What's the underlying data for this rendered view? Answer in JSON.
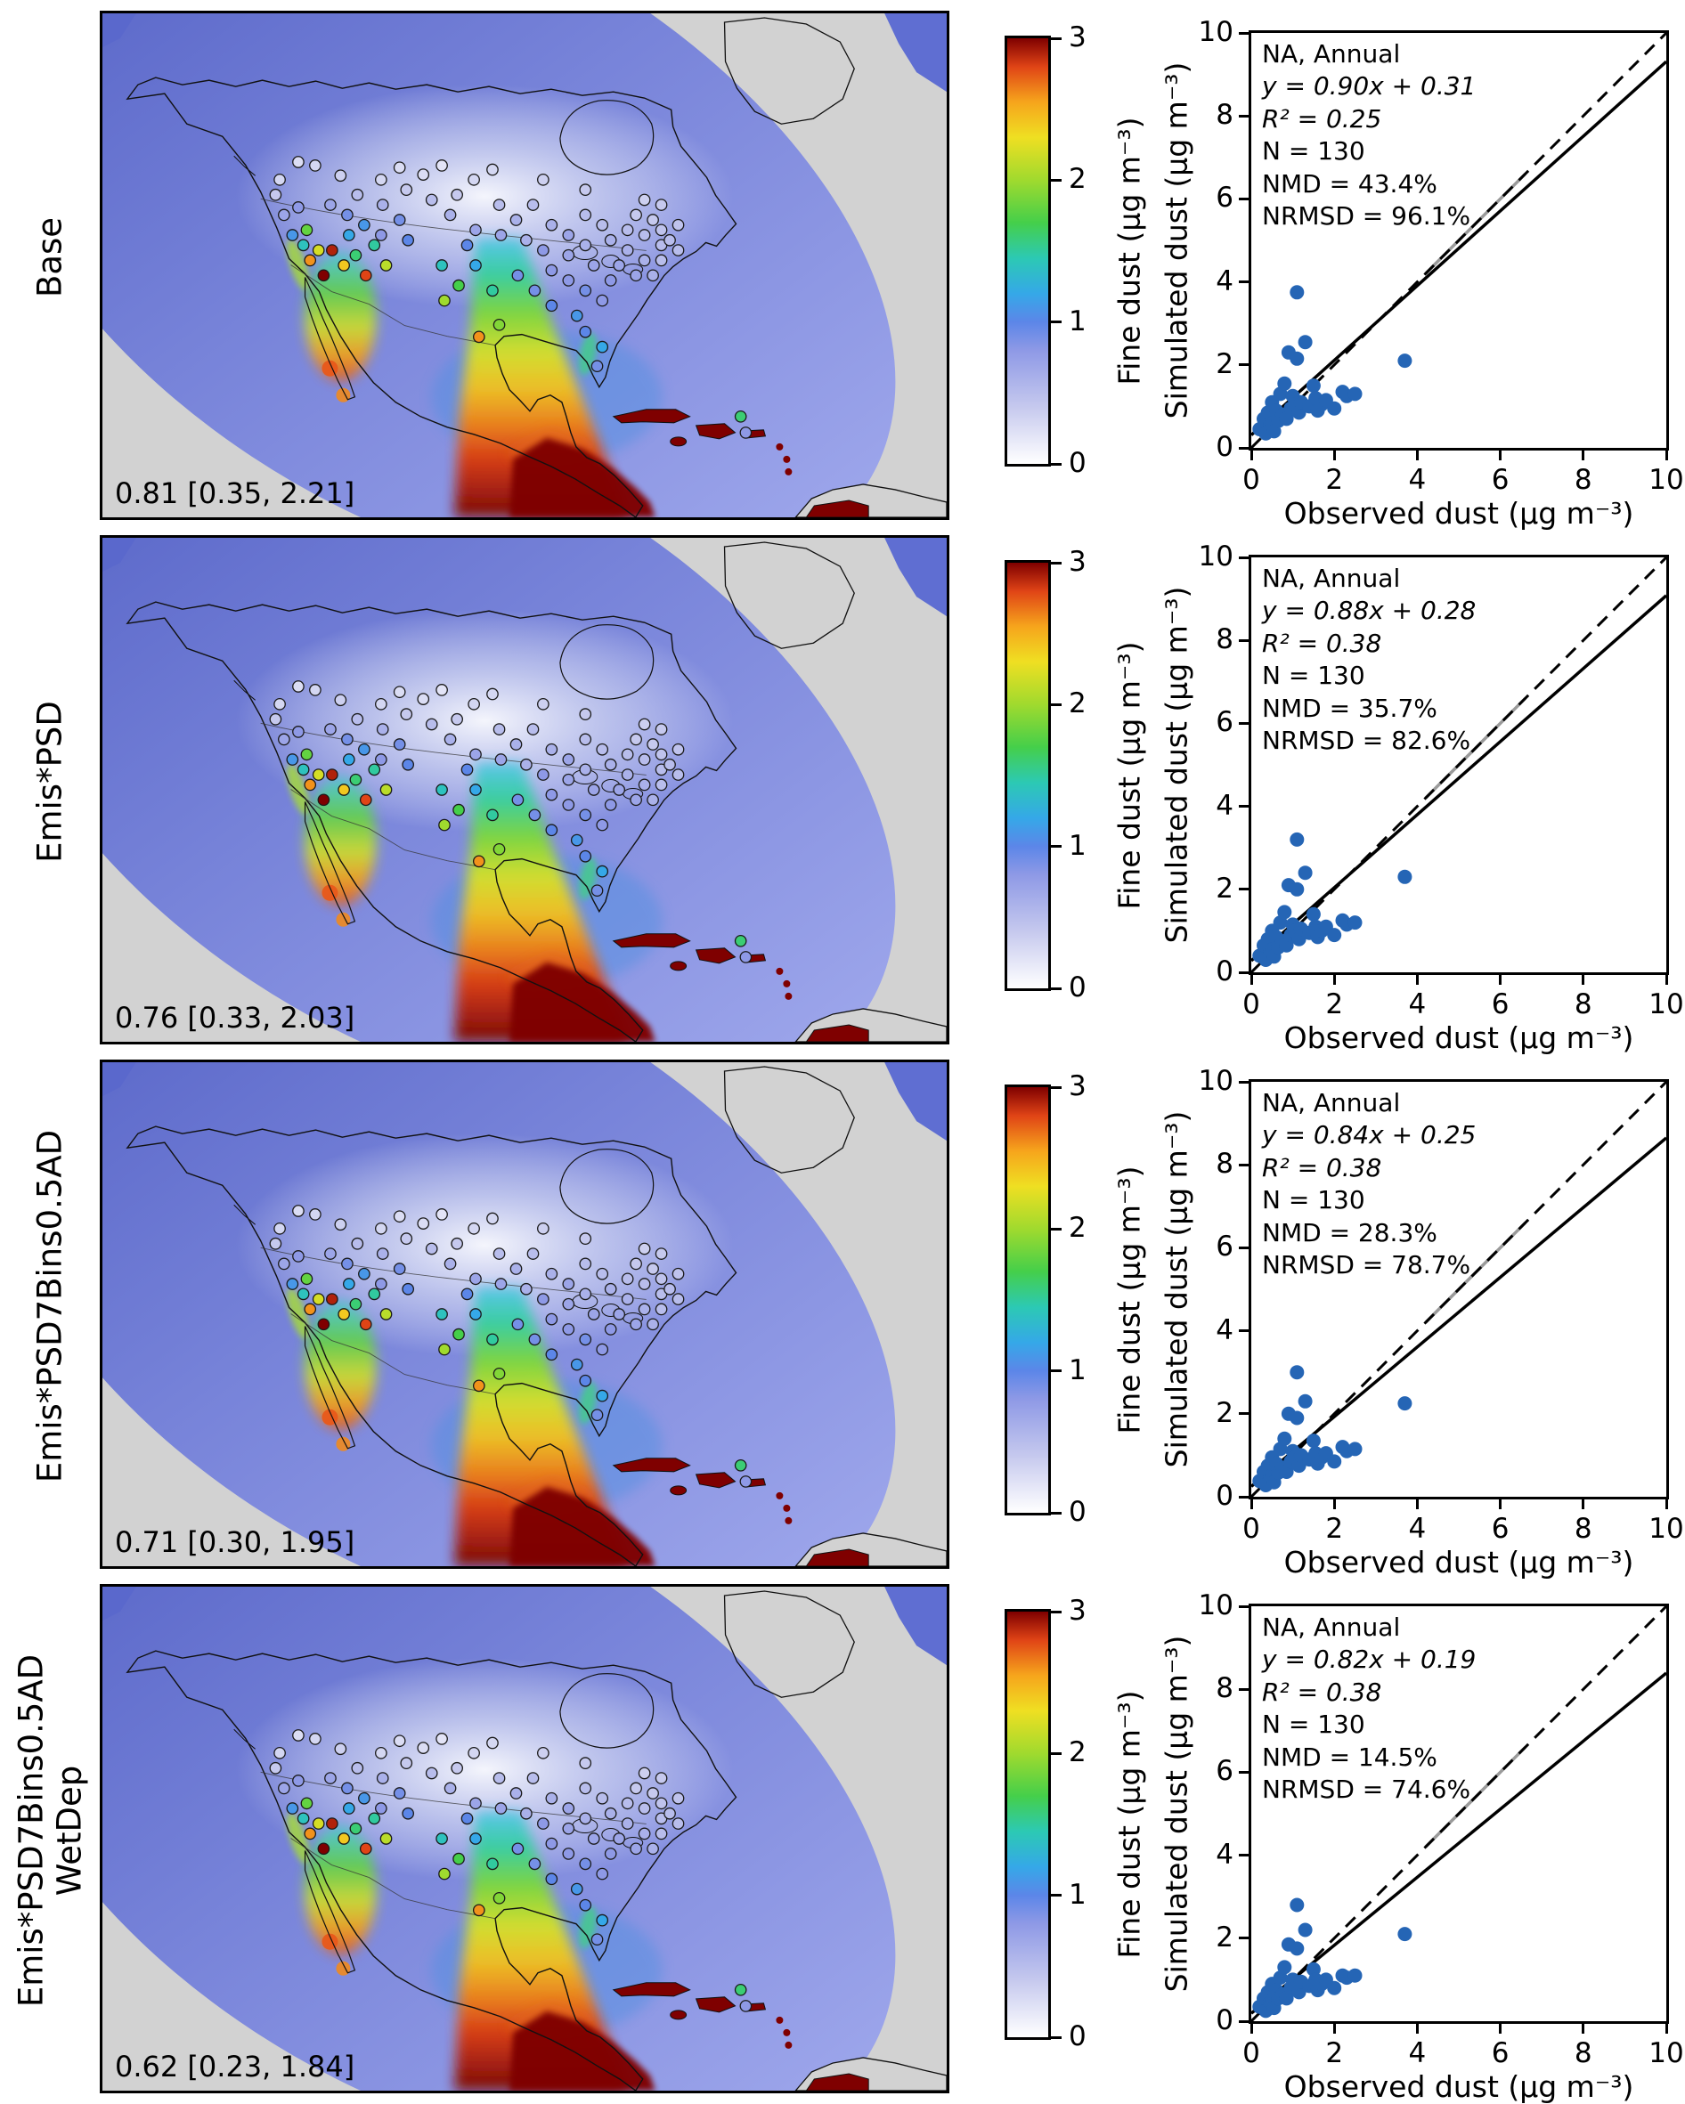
{
  "chart_data": {
    "scatter_axes": {
      "type": "scatter",
      "xlabel": "Observed dust (µg m⁻³)",
      "ylabel": "Simulated dust (µg m⁻³)",
      "xlim": [
        0,
        10
      ],
      "ylim": [
        0,
        10
      ],
      "xticks": [
        0,
        2,
        4,
        6,
        8,
        10
      ],
      "yticks": [
        0,
        2,
        4,
        6,
        8,
        10
      ],
      "point_color": "#2565b5",
      "one_to_one_line": "dashed black y = x",
      "regression_line": "solid black"
    },
    "colorbar": {
      "label": "Fine dust (µg m⁻³)",
      "ticks": [
        0,
        1,
        2,
        3
      ],
      "range": [
        0,
        3
      ],
      "stops": [
        [
          0,
          "#ffffff"
        ],
        [
          0.4,
          "#c6c9ee"
        ],
        [
          0.8,
          "#8e99e6"
        ],
        [
          1.0,
          "#5c86e8"
        ],
        [
          1.2,
          "#35a8e8"
        ],
        [
          1.45,
          "#2cc9b4"
        ],
        [
          1.7,
          "#45cf4a"
        ],
        [
          2.0,
          "#a0da2e"
        ],
        [
          2.3,
          "#efdf22"
        ],
        [
          2.55,
          "#f6a51c"
        ],
        [
          2.8,
          "#e04416"
        ],
        [
          3.0,
          "#7f0000"
        ]
      ]
    },
    "map_type": "filled model fine-dust concentration field over North America with circular observation-site markers",
    "map_sites": [
      [
        0.205,
        0.36,
        0.4
      ],
      [
        0.215,
        0.4,
        0.7
      ],
      [
        0.225,
        0.44,
        1.1
      ],
      [
        0.21,
        0.33,
        0.3
      ],
      [
        0.232,
        0.385,
        0.8
      ],
      [
        0.238,
        0.46,
        1.4
      ],
      [
        0.246,
        0.49,
        2.6
      ],
      [
        0.242,
        0.43,
        1.8
      ],
      [
        0.256,
        0.47,
        2.2
      ],
      [
        0.272,
        0.47,
        2.9
      ],
      [
        0.286,
        0.5,
        2.4
      ],
      [
        0.3,
        0.48,
        1.6
      ],
      [
        0.312,
        0.52,
        2.8
      ],
      [
        0.292,
        0.44,
        1.2
      ],
      [
        0.322,
        0.46,
        1.5
      ],
      [
        0.336,
        0.5,
        2.1
      ],
      [
        0.262,
        0.52,
        3.0
      ],
      [
        0.27,
        0.38,
        0.7
      ],
      [
        0.29,
        0.4,
        0.9
      ],
      [
        0.31,
        0.42,
        1.1
      ],
      [
        0.33,
        0.44,
        0.8
      ],
      [
        0.302,
        0.36,
        0.5
      ],
      [
        0.332,
        0.38,
        0.6
      ],
      [
        0.352,
        0.41,
        0.9
      ],
      [
        0.362,
        0.45,
        1.0
      ],
      [
        0.33,
        0.33,
        0.3
      ],
      [
        0.36,
        0.35,
        0.4
      ],
      [
        0.39,
        0.37,
        0.5
      ],
      [
        0.42,
        0.36,
        0.4
      ],
      [
        0.38,
        0.32,
        0.25
      ],
      [
        0.44,
        0.33,
        0.3
      ],
      [
        0.412,
        0.4,
        0.6
      ],
      [
        0.442,
        0.43,
        0.7
      ],
      [
        0.402,
        0.5,
        1.4
      ],
      [
        0.422,
        0.54,
        1.7
      ],
      [
        0.442,
        0.5,
        1.2
      ],
      [
        0.432,
        0.46,
        1.0
      ],
      [
        0.462,
        0.55,
        1.5
      ],
      [
        0.405,
        0.57,
        2.0
      ],
      [
        0.47,
        0.38,
        0.5
      ],
      [
        0.49,
        0.41,
        0.6
      ],
      [
        0.51,
        0.38,
        0.5
      ],
      [
        0.472,
        0.44,
        0.7
      ],
      [
        0.502,
        0.45,
        0.6
      ],
      [
        0.532,
        0.42,
        0.6
      ],
      [
        0.552,
        0.44,
        0.7
      ],
      [
        0.522,
        0.47,
        0.8
      ],
      [
        0.552,
        0.48,
        0.7
      ],
      [
        0.572,
        0.46,
        0.6
      ],
      [
        0.492,
        0.52,
        0.9
      ],
      [
        0.512,
        0.55,
        0.9
      ],
      [
        0.532,
        0.51,
        0.8
      ],
      [
        0.552,
        0.53,
        0.8
      ],
      [
        0.572,
        0.55,
        0.9
      ],
      [
        0.592,
        0.57,
        0.8
      ],
      [
        0.532,
        0.58,
        1.0
      ],
      [
        0.562,
        0.6,
        1.1
      ],
      [
        0.572,
        0.4,
        0.5
      ],
      [
        0.592,
        0.42,
        0.5
      ],
      [
        0.602,
        0.45,
        0.6
      ],
      [
        0.622,
        0.47,
        0.6
      ],
      [
        0.612,
        0.5,
        0.7
      ],
      [
        0.632,
        0.52,
        0.7
      ],
      [
        0.642,
        0.49,
        0.6
      ],
      [
        0.622,
        0.43,
        0.5
      ],
      [
        0.642,
        0.44,
        0.5
      ],
      [
        0.662,
        0.46,
        0.5
      ],
      [
        0.652,
        0.52,
        0.6
      ],
      [
        0.602,
        0.53,
        0.8
      ],
      [
        0.582,
        0.5,
        0.7
      ],
      [
        0.662,
        0.49,
        0.5
      ],
      [
        0.632,
        0.4,
        0.4
      ],
      [
        0.652,
        0.41,
        0.4
      ],
      [
        0.662,
        0.43,
        0.45
      ],
      [
        0.672,
        0.45,
        0.5
      ],
      [
        0.682,
        0.47,
        0.5
      ],
      [
        0.642,
        0.37,
        0.35
      ],
      [
        0.662,
        0.38,
        0.4
      ],
      [
        0.682,
        0.42,
        0.45
      ],
      [
        0.252,
        0.302,
        0.3
      ],
      [
        0.282,
        0.322,
        0.35
      ],
      [
        0.352,
        0.306,
        0.25
      ],
      [
        0.402,
        0.302,
        0.2
      ],
      [
        0.462,
        0.31,
        0.3
      ],
      [
        0.522,
        0.33,
        0.35
      ],
      [
        0.572,
        0.35,
        0.4
      ],
      [
        0.232,
        0.295,
        0.25
      ],
      [
        0.572,
        0.632,
        1.0
      ],
      [
        0.592,
        0.662,
        1.2
      ],
      [
        0.586,
        0.7,
        0.9
      ],
      [
        0.756,
        0.8,
        1.6
      ],
      [
        0.762,
        0.832,
        0.8
      ],
      [
        0.446,
        0.642,
        2.6
      ],
      [
        0.47,
        0.618,
        1.9
      ]
    ],
    "rows": [
      {
        "label": "Base",
        "map": {
          "stat": "0.81 [0.35, 2.21]"
        },
        "scatter": {
          "annotation": {
            "region": "NA, Annual",
            "fit": "y = 0.90x + 0.31",
            "r2": "R² = 0.25",
            "n": "N = 130",
            "nmd": "NMD = 43.4%",
            "nrmsd": "NRMSD = 96.1%"
          },
          "fit": {
            "slope": 0.9,
            "intercept": 0.31
          },
          "points": [
            [
              0.2,
              0.45
            ],
            [
              0.3,
              0.7
            ],
            [
              0.35,
              0.35
            ],
            [
              0.4,
              0.85
            ],
            [
              0.45,
              0.55
            ],
            [
              0.5,
              0.6
            ],
            [
              0.5,
              1.1
            ],
            [
              0.55,
              0.4
            ],
            [
              0.6,
              0.9
            ],
            [
              0.65,
              0.65
            ],
            [
              0.7,
              1.3
            ],
            [
              0.75,
              0.8
            ],
            [
              0.8,
              1.55
            ],
            [
              0.85,
              0.7
            ],
            [
              0.9,
              2.3
            ],
            [
              0.95,
              0.95
            ],
            [
              1.0,
              1.25
            ],
            [
              1.1,
              3.75
            ],
            [
              1.05,
              1.05
            ],
            [
              1.1,
              2.15
            ],
            [
              1.15,
              0.85
            ],
            [
              1.2,
              1.1
            ],
            [
              1.3,
              2.55
            ],
            [
              1.4,
              1.0
            ],
            [
              1.5,
              1.5
            ],
            [
              1.55,
              1.2
            ],
            [
              1.6,
              0.9
            ],
            [
              1.7,
              1.05
            ],
            [
              1.8,
              1.15
            ],
            [
              2.0,
              0.95
            ],
            [
              2.2,
              1.35
            ],
            [
              2.3,
              1.25
            ],
            [
              2.5,
              1.3
            ],
            [
              3.7,
              2.1
            ]
          ]
        }
      },
      {
        "label": "Emis*PSD",
        "map": {
          "stat": "0.76 [0.33, 2.03]"
        },
        "scatter": {
          "annotation": {
            "region": "NA, Annual",
            "fit": "y = 0.88x + 0.28",
            "r2": "R² = 0.38",
            "n": "N = 130",
            "nmd": "NMD = 35.7%",
            "nrmsd": "NRMSD = 82.6%"
          },
          "fit": {
            "slope": 0.88,
            "intercept": 0.28
          },
          "points": [
            [
              0.2,
              0.4
            ],
            [
              0.3,
              0.65
            ],
            [
              0.35,
              0.3
            ],
            [
              0.4,
              0.8
            ],
            [
              0.45,
              0.5
            ],
            [
              0.5,
              0.55
            ],
            [
              0.5,
              1.0
            ],
            [
              0.55,
              0.38
            ],
            [
              0.6,
              0.85
            ],
            [
              0.65,
              0.6
            ],
            [
              0.7,
              1.2
            ],
            [
              0.75,
              0.75
            ],
            [
              0.8,
              1.45
            ],
            [
              0.85,
              0.65
            ],
            [
              0.9,
              2.1
            ],
            [
              0.95,
              0.9
            ],
            [
              1.0,
              1.15
            ],
            [
              1.1,
              3.2
            ],
            [
              1.05,
              1.0
            ],
            [
              1.1,
              2.0
            ],
            [
              1.15,
              0.8
            ],
            [
              1.2,
              1.05
            ],
            [
              1.3,
              2.4
            ],
            [
              1.4,
              0.95
            ],
            [
              1.5,
              1.4
            ],
            [
              1.55,
              1.1
            ],
            [
              1.6,
              0.85
            ],
            [
              1.7,
              1.0
            ],
            [
              1.8,
              1.1
            ],
            [
              2.0,
              0.9
            ],
            [
              2.2,
              1.25
            ],
            [
              2.3,
              1.15
            ],
            [
              2.5,
              1.2
            ],
            [
              3.7,
              2.3
            ]
          ]
        }
      },
      {
        "label": "Emis*PSD7Bins0.5AD",
        "map": {
          "stat": "0.71 [0.30, 1.95]"
        },
        "scatter": {
          "annotation": {
            "region": "NA, Annual",
            "fit": "y = 0.84x + 0.25",
            "r2": "R² = 0.38",
            "n": "N = 130",
            "nmd": "NMD = 28.3%",
            "nrmsd": "NRMSD = 78.7%"
          },
          "fit": {
            "slope": 0.84,
            "intercept": 0.25
          },
          "points": [
            [
              0.2,
              0.38
            ],
            [
              0.3,
              0.6
            ],
            [
              0.35,
              0.28
            ],
            [
              0.4,
              0.75
            ],
            [
              0.45,
              0.48
            ],
            [
              0.5,
              0.52
            ],
            [
              0.5,
              0.95
            ],
            [
              0.55,
              0.35
            ],
            [
              0.6,
              0.8
            ],
            [
              0.65,
              0.58
            ],
            [
              0.7,
              1.15
            ],
            [
              0.75,
              0.7
            ],
            [
              0.8,
              1.4
            ],
            [
              0.85,
              0.6
            ],
            [
              0.9,
              2.0
            ],
            [
              0.95,
              0.85
            ],
            [
              1.0,
              1.1
            ],
            [
              1.1,
              3.0
            ],
            [
              1.05,
              0.95
            ],
            [
              1.1,
              1.9
            ],
            [
              1.15,
              0.75
            ],
            [
              1.2,
              1.0
            ],
            [
              1.3,
              2.3
            ],
            [
              1.4,
              0.9
            ],
            [
              1.5,
              1.35
            ],
            [
              1.55,
              1.05
            ],
            [
              1.6,
              0.8
            ],
            [
              1.7,
              0.95
            ],
            [
              1.8,
              1.05
            ],
            [
              2.0,
              0.85
            ],
            [
              2.2,
              1.2
            ],
            [
              2.3,
              1.1
            ],
            [
              2.5,
              1.15
            ],
            [
              3.7,
              2.25
            ]
          ]
        }
      },
      {
        "label": "Emis*PSD7Bins0.5AD\nWetDep",
        "map": {
          "stat": "0.62 [0.23, 1.84]"
        },
        "scatter": {
          "annotation": {
            "region": "NA, Annual",
            "fit": "y = 0.82x + 0.19",
            "r2": "R² = 0.38",
            "n": "N = 130",
            "nmd": "NMD = 14.5%",
            "nrmsd": "NRMSD = 74.6%"
          },
          "fit": {
            "slope": 0.82,
            "intercept": 0.19
          },
          "points": [
            [
              0.2,
              0.35
            ],
            [
              0.3,
              0.55
            ],
            [
              0.35,
              0.25
            ],
            [
              0.4,
              0.7
            ],
            [
              0.45,
              0.45
            ],
            [
              0.5,
              0.5
            ],
            [
              0.5,
              0.9
            ],
            [
              0.55,
              0.32
            ],
            [
              0.6,
              0.75
            ],
            [
              0.65,
              0.55
            ],
            [
              0.7,
              1.05
            ],
            [
              0.75,
              0.65
            ],
            [
              0.8,
              1.3
            ],
            [
              0.85,
              0.55
            ],
            [
              0.9,
              1.85
            ],
            [
              0.95,
              0.8
            ],
            [
              1.0,
              1.0
            ],
            [
              1.1,
              2.8
            ],
            [
              1.05,
              0.9
            ],
            [
              1.1,
              1.75
            ],
            [
              1.15,
              0.7
            ],
            [
              1.2,
              0.95
            ],
            [
              1.3,
              2.2
            ],
            [
              1.4,
              0.85
            ],
            [
              1.5,
              1.25
            ],
            [
              1.55,
              1.0
            ],
            [
              1.6,
              0.75
            ],
            [
              1.7,
              0.9
            ],
            [
              1.8,
              1.0
            ],
            [
              2.0,
              0.8
            ],
            [
              2.2,
              1.1
            ],
            [
              2.3,
              1.05
            ],
            [
              2.5,
              1.1
            ],
            [
              3.7,
              2.1
            ]
          ]
        }
      }
    ]
  }
}
